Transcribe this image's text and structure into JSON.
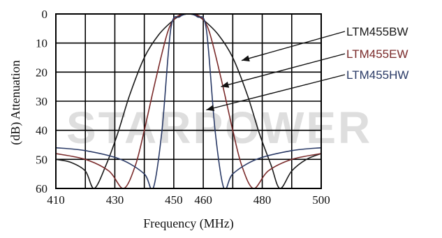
{
  "watermark_text": "STARPOWER",
  "chart_data": {
    "type": "line",
    "xlabel": "Frequency (MHz)",
    "ylabel": "(dB) Attenuation",
    "x_tick_labels": [
      "410",
      "430",
      "450",
      "460",
      "480",
      "500"
    ],
    "y_tick_labels": [
      "0",
      "10",
      "20",
      "30",
      "40",
      "50",
      "60"
    ],
    "xlim": [
      410,
      500
    ],
    "ylim": [
      0,
      60
    ],
    "y_inverted": true,
    "grid": true,
    "legend_placement": "right, labels with arrows pointing to curves",
    "series": [
      {
        "name": "LTM455BW",
        "color": "#1a1a1a",
        "x": [
          410,
          415,
          420,
          423,
          427,
          431,
          435,
          440,
          445,
          450,
          452.5,
          455,
          457.5,
          460,
          465,
          470,
          475,
          479,
          483,
          486,
          490,
          495,
          500
        ],
        "y": [
          50,
          51,
          54,
          60,
          52,
          41,
          28,
          15,
          7,
          2,
          0.5,
          0,
          0.5,
          2,
          7,
          15,
          28,
          41,
          52,
          60,
          54,
          50,
          48
        ]
      },
      {
        "name": "LTM455EW",
        "color": "#7a2a2a",
        "x": [
          410,
          420,
          428,
          433,
          437,
          440,
          444,
          448,
          451,
          455,
          459,
          462,
          466,
          470,
          473,
          477,
          482,
          490,
          500
        ],
        "y": [
          48,
          50,
          54,
          60,
          52,
          40,
          22,
          6,
          1,
          0,
          1,
          6,
          22,
          40,
          52,
          60,
          54,
          50,
          48
        ]
      },
      {
        "name": "LTM455HW",
        "color": "#2a3a66",
        "x": [
          410,
          420,
          432,
          440,
          443,
          446,
          449,
          452,
          455,
          458,
          461,
          464,
          467,
          470,
          478,
          490,
          500
        ],
        "y": [
          46,
          47,
          50,
          55,
          60,
          40,
          5,
          1,
          0,
          1,
          5,
          40,
          60,
          55,
          50,
          47,
          46
        ]
      }
    ],
    "annotations": [
      {
        "label": "LTM455BW",
        "arrow_to": [
          473,
          16
        ],
        "color": "#1a1a1a"
      },
      {
        "label": "LTM455EW",
        "arrow_to": [
          466,
          25
        ],
        "color": "#7a2a2a"
      },
      {
        "label": "LTM455HW",
        "arrow_to": [
          461,
          33
        ],
        "color": "#2a3a66"
      }
    ]
  }
}
